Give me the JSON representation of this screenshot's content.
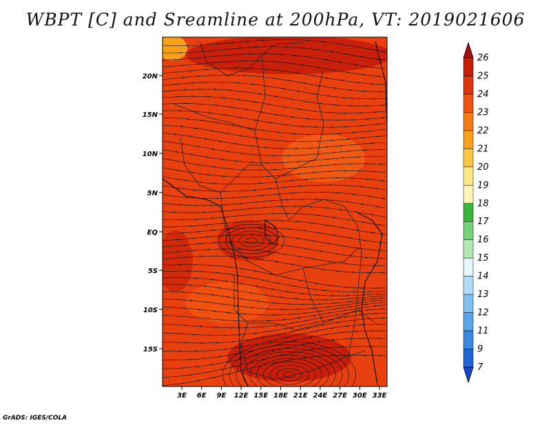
{
  "title": "WBPT [C] and Sreamline at 200hPa, VT: 2019021606",
  "footer": "GrADS: IGES/COLA",
  "map": {
    "lat_labels": [
      "20N",
      "15N",
      "10N",
      "5N",
      "EQ",
      "5S",
      "10S",
      "15S"
    ],
    "lon_labels": [
      "3E",
      "6E",
      "9E",
      "12E",
      "15E",
      "18E",
      "21E",
      "24E",
      "27E",
      "30E",
      "33E"
    ],
    "fill_color": "#f04a12"
  },
  "colorbar": {
    "labels": [
      "26",
      "25",
      "24",
      "23",
      "22",
      "21",
      "20",
      "19",
      "18",
      "17",
      "16",
      "15",
      "14",
      "13",
      "12",
      "11",
      "9",
      "7"
    ],
    "colors": [
      "#a50f0f",
      "#c81e0a",
      "#e0320c",
      "#f05010",
      "#f47a14",
      "#f8a01a",
      "#fac840",
      "#fce888",
      "#fdf6b8",
      "#3cb43c",
      "#78d278",
      "#b4e8b4",
      "#e6f6fa",
      "#b4dcf8",
      "#82c0f0",
      "#5aa4ea",
      "#3a88e0",
      "#2064d8",
      "#1446c8"
    ]
  }
}
